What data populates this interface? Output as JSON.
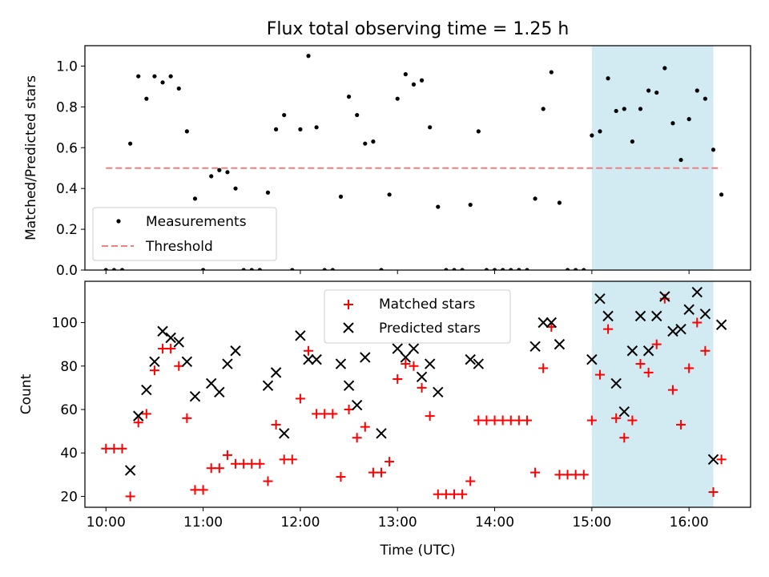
{
  "title": "Flux total observing time = 1.25 h",
  "xlabel": "Time (UTC)",
  "top_ylabel": "Matched/Predicted stars",
  "bottom_ylabel": "Count",
  "x_tick_labels": [
    "10:00",
    "11:00",
    "12:00",
    "13:00",
    "14:00",
    "15:00",
    "16:00"
  ],
  "top_y_tick_labels": [
    "0.0",
    "0.2",
    "0.4",
    "0.6",
    "0.8",
    "1.0"
  ],
  "bottom_y_tick_labels": [
    "20",
    "40",
    "60",
    "80",
    "100"
  ],
  "legend_top": {
    "measurements": "Measurements",
    "threshold": "Threshold"
  },
  "legend_bottom": {
    "matched": "Matched stars",
    "predicted": "Predicted stars"
  },
  "colors": {
    "measurements": "#000000",
    "threshold": "#f08080",
    "matched": "#ff0000",
    "predicted": "#000000",
    "shade": "#add8e6"
  },
  "chart_data": [
    {
      "type": "scatter",
      "panel": "top",
      "title": "Flux total observing time = 1.25 h",
      "ylabel": "Matched/Predicted stars",
      "xlim": [
        "09:47",
        "16:38"
      ],
      "ylim": [
        0,
        1.1
      ],
      "shaded_region": [
        "15:00",
        "16:15"
      ],
      "legend_position": "lower-left",
      "series": [
        {
          "name": "Measurements",
          "marker": "point",
          "x": [
            "10:00",
            "10:05",
            "10:10",
            "10:15",
            "10:20",
            "10:25",
            "10:30",
            "10:35",
            "10:40",
            "10:45",
            "10:50",
            "10:55",
            "11:00",
            "11:05",
            "11:10",
            "11:15",
            "11:20",
            "11:25",
            "11:30",
            "11:35",
            "11:40",
            "11:45",
            "11:50",
            "11:55",
            "12:00",
            "12:05",
            "12:10",
            "12:15",
            "12:20",
            "12:25",
            "12:30",
            "12:35",
            "12:40",
            "12:45",
            "12:50",
            "12:55",
            "13:00",
            "13:05",
            "13:10",
            "13:15",
            "13:20",
            "13:25",
            "13:30",
            "13:35",
            "13:40",
            "13:45",
            "13:50",
            "13:55",
            "14:00",
            "14:05",
            "14:10",
            "14:15",
            "14:20",
            "14:25",
            "14:30",
            "14:35",
            "14:40",
            "14:45",
            "14:50",
            "14:55",
            "15:00",
            "15:05",
            "15:10",
            "15:15",
            "15:20",
            "15:25",
            "15:30",
            "15:35",
            "15:40",
            "15:45",
            "15:50",
            "15:55",
            "16:00",
            "16:05",
            "16:10",
            "16:15",
            "16:20"
          ],
          "y": [
            0,
            0,
            0,
            0.62,
            0.95,
            0.84,
            0.95,
            0.92,
            0.95,
            0.89,
            0.68,
            0.35,
            0,
            0.46,
            0.49,
            0.48,
            0.4,
            0,
            0,
            0,
            0.38,
            0.69,
            0.76,
            0,
            0.69,
            1.05,
            0.7,
            0,
            0,
            0.36,
            0.85,
            0.76,
            0.62,
            0.63,
            0,
            0.37,
            0.84,
            0.96,
            0.91,
            0.93,
            0.7,
            0.31,
            0,
            0,
            0,
            0.32,
            0.68,
            0,
            0,
            0,
            0,
            0,
            0,
            0.35,
            0.79,
            0.97,
            0.33,
            0,
            0,
            0,
            0.66,
            0.68,
            0.94,
            0.78,
            0.79,
            0.63,
            0.79,
            0.88,
            0.87,
            0.99,
            0.72,
            0.54,
            0.74,
            0.88,
            0.84,
            0.59,
            0.37
          ]
        },
        {
          "name": "Threshold",
          "type": "line",
          "style": "dashed",
          "x": [
            "10:00",
            "16:20"
          ],
          "y": [
            0.5,
            0.5
          ]
        }
      ]
    },
    {
      "type": "scatter",
      "panel": "bottom",
      "xlabel": "Time (UTC)",
      "ylabel": "Count",
      "xlim": [
        "09:47",
        "16:38"
      ],
      "ylim": [
        15,
        119
      ],
      "shaded_region": [
        "15:00",
        "16:15"
      ],
      "legend_position": "upper-center",
      "series": [
        {
          "name": "Matched stars",
          "marker": "plus",
          "x": [
            "10:00",
            "10:05",
            "10:10",
            "10:15",
            "10:20",
            "10:25",
            "10:30",
            "10:35",
            "10:40",
            "10:45",
            "10:50",
            "10:55",
            "11:00",
            "11:05",
            "11:10",
            "11:15",
            "11:20",
            "11:25",
            "11:30",
            "11:35",
            "11:40",
            "11:45",
            "11:50",
            "11:55",
            "12:00",
            "12:05",
            "12:10",
            "12:15",
            "12:20",
            "12:25",
            "12:30",
            "12:35",
            "12:40",
            "12:45",
            "12:50",
            "12:55",
            "13:00",
            "13:05",
            "13:10",
            "13:15",
            "13:20",
            "13:25",
            "13:30",
            "13:35",
            "13:40",
            "13:45",
            "13:50",
            "13:55",
            "14:00",
            "14:05",
            "14:10",
            "14:15",
            "14:20",
            "14:25",
            "14:30",
            "14:35",
            "14:40",
            "14:45",
            "14:50",
            "14:55",
            "15:00",
            "15:05",
            "15:10",
            "15:15",
            "15:20",
            "15:25",
            "15:30",
            "15:35",
            "15:40",
            "15:45",
            "15:50",
            "15:55",
            "16:00",
            "16:05",
            "16:10",
            "16:15",
            "16:20"
          ],
          "y": [
            42,
            42,
            42,
            20,
            54,
            58,
            78,
            88,
            88,
            80,
            56,
            23,
            23,
            33,
            33,
            39,
            35,
            35,
            35,
            35,
            27,
            53,
            37,
            37,
            65,
            87,
            58,
            58,
            58,
            29,
            60,
            47,
            52,
            31,
            31,
            36,
            74,
            81,
            80,
            70,
            57,
            21,
            21,
            21,
            21,
            27,
            55,
            55,
            55,
            55,
            55,
            55,
            55,
            31,
            79,
            98,
            30,
            30,
            30,
            30,
            55,
            76,
            97,
            56,
            47,
            55,
            81,
            77,
            90,
            111,
            69,
            53,
            79,
            100,
            87,
            22,
            37
          ]
        },
        {
          "name": "Predicted stars",
          "marker": "x",
          "x": [
            "10:15",
            "10:20",
            "10:25",
            "10:30",
            "10:35",
            "10:40",
            "10:45",
            "10:50",
            "10:55",
            "11:05",
            "11:10",
            "11:15",
            "11:20",
            "11:40",
            "11:45",
            "11:50",
            "12:00",
            "12:05",
            "12:10",
            "12:25",
            "12:30",
            "12:35",
            "12:40",
            "12:50",
            "13:00",
            "13:05",
            "13:10",
            "13:15",
            "13:20",
            "13:25",
            "13:45",
            "13:50",
            "14:25",
            "14:30",
            "14:35",
            "14:40",
            "15:00",
            "15:05",
            "15:10",
            "15:15",
            "15:20",
            "15:25",
            "15:30",
            "15:35",
            "15:40",
            "15:45",
            "15:50",
            "15:55",
            "16:00",
            "16:05",
            "16:10",
            "16:15",
            "16:20"
          ],
          "y": [
            32,
            57,
            69,
            82,
            96,
            93,
            91,
            82,
            66,
            72,
            68,
            81,
            87,
            71,
            77,
            49,
            94,
            83,
            83,
            81,
            71,
            62,
            84,
            49,
            88,
            84,
            88,
            75,
            81,
            68,
            83,
            81,
            89,
            100,
            100,
            90,
            83,
            111,
            103,
            72,
            59,
            87,
            103,
            87,
            103,
            112,
            96,
            97,
            106,
            114,
            104,
            37,
            99
          ]
        }
      ]
    }
  ]
}
